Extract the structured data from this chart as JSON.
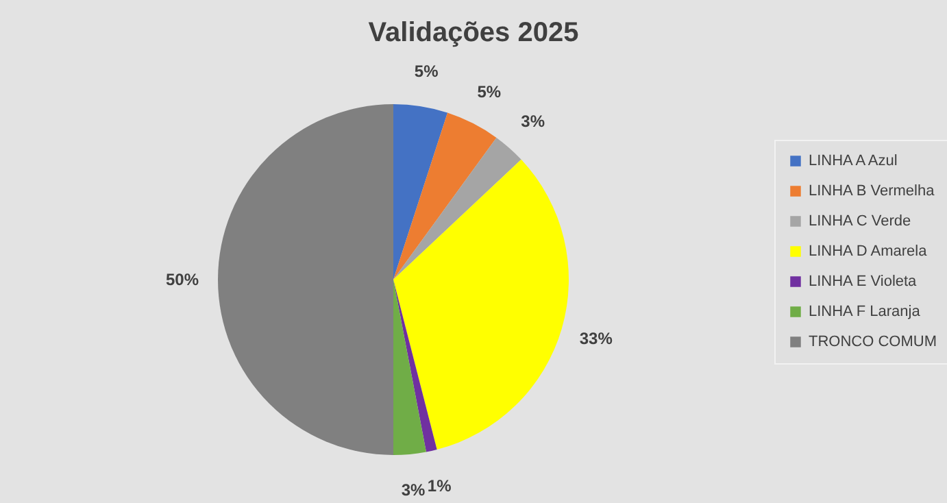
{
  "chart_data": {
    "type": "pie",
    "title": "Validações 2025",
    "categories": [
      "LINHA A Azul",
      "LINHA B Vermelha",
      "LINHA C Verde",
      "LINHA D Amarela",
      "LINHA E Violeta",
      "LINHA F Laranja",
      "TRONCO COMUM"
    ],
    "values": [
      5,
      5,
      3,
      33,
      1,
      3,
      50
    ],
    "colors": [
      "#4472c4",
      "#ed7d31",
      "#a5a5a5",
      "#ffff00",
      "#7030a0",
      "#70ad47",
      "#808080"
    ],
    "value_labels": [
      "5%",
      "5%",
      "3%",
      "33%",
      "1%",
      "3%",
      "50%"
    ],
    "legend": "right"
  }
}
